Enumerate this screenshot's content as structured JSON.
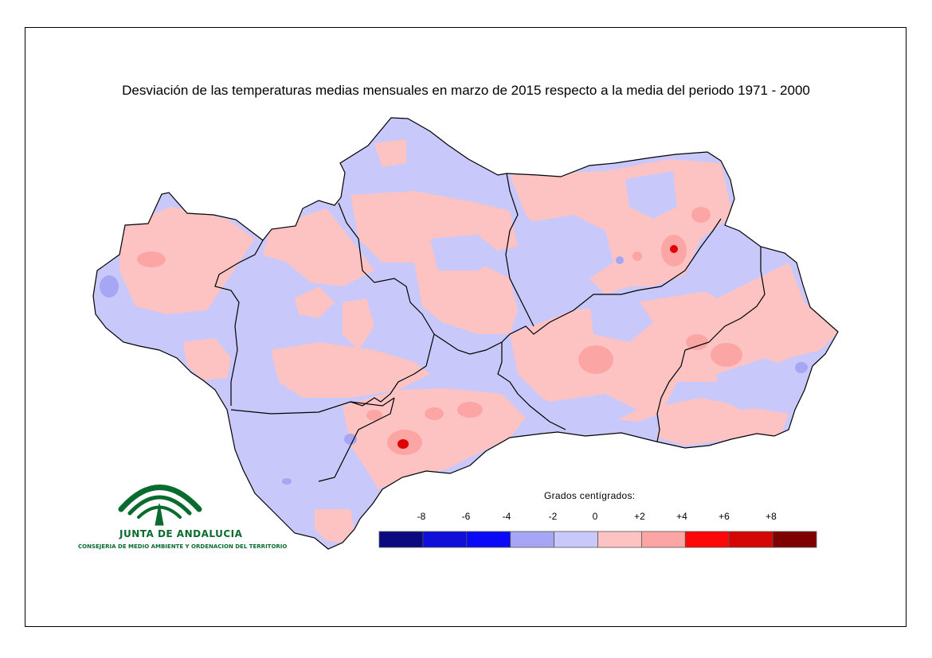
{
  "title": "Desviación de las temperaturas medias mensuales en marzo de 2015 respecto a la media del periodo 1971 - 2000",
  "legend": {
    "title": "Grados centígrados:",
    "ticks": [
      "-8",
      "-6",
      "-4",
      "-2",
      "0",
      "+2",
      "+4",
      "+6",
      "+8"
    ],
    "colors": [
      "#0b0b7f",
      "#1010d8",
      "#0a0af7",
      "#a6a6f5",
      "#c9c8fb",
      "#fdc3c3",
      "#fca5a5",
      "#fd0808",
      "#d50606",
      "#7f0000"
    ]
  },
  "map_colors": {
    "negative_zone": "#c9c8fb",
    "positive_zone": "#fdc3c3",
    "warm_zone": "#fca5a5",
    "cool_zone": "#a6a6f5",
    "hot_spot": "#e00000",
    "border": "#000000"
  },
  "logo": {
    "name": "JUNTA DE ANDALUCIA",
    "subtitle": "CONSEJERIA DE MEDIO AMBIENTE Y ORDENACION DEL TERRITORIO",
    "color": "#0a6b2f"
  }
}
